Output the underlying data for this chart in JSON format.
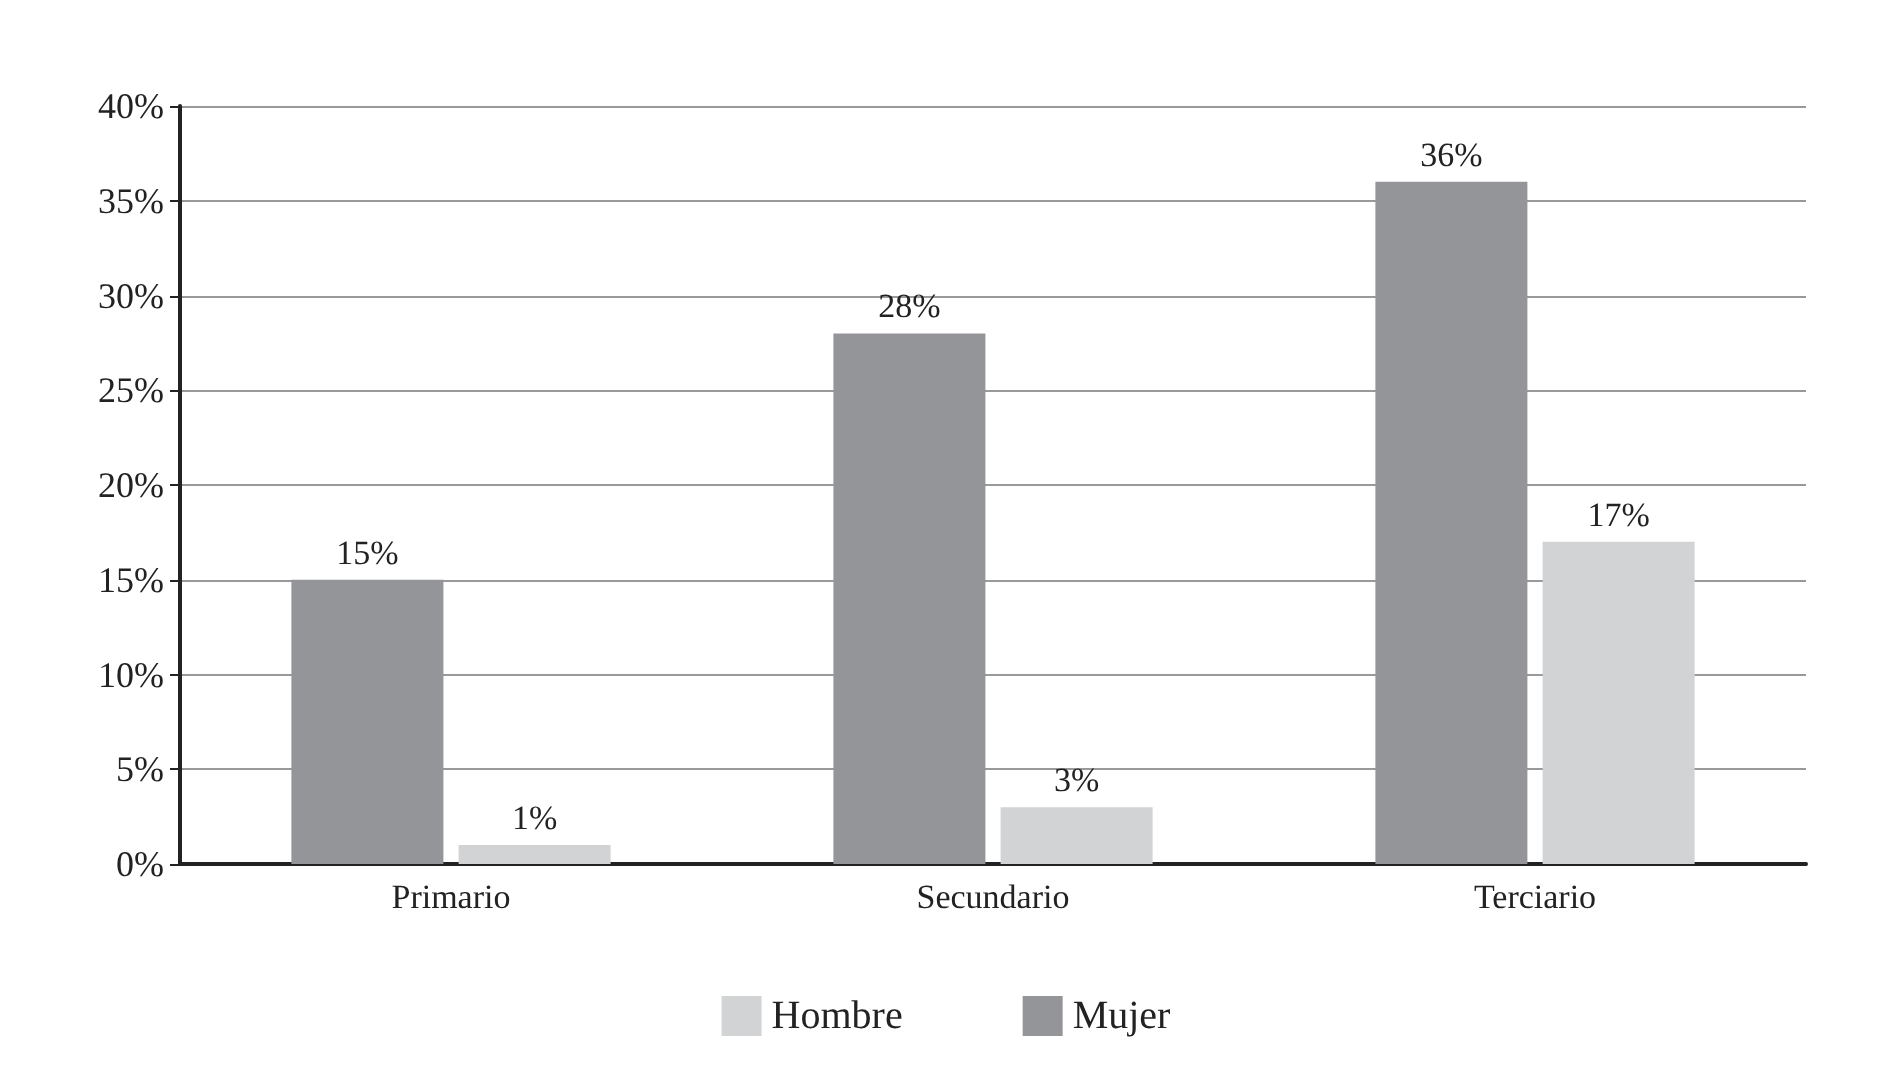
{
  "chart_data": {
    "type": "bar",
    "categories": [
      "Primario",
      "Secundario",
      "Terciario"
    ],
    "series": [
      {
        "name": "Mujer",
        "color": "#939598",
        "values": [
          15,
          28,
          36
        ],
        "value_labels": [
          "15%",
          "28%",
          "36%"
        ]
      },
      {
        "name": "Hombre",
        "color": "#d1d3d4",
        "values": [
          1,
          3,
          17
        ],
        "value_labels": [
          "1%",
          "3%",
          "17%"
        ]
      }
    ],
    "ylim": [
      0,
      40
    ],
    "yticks": [
      {
        "value": 0,
        "label": "0%"
      },
      {
        "value": 5,
        "label": "5%"
      },
      {
        "value": 10,
        "label": "10%"
      },
      {
        "value": 15,
        "label": "15%"
      },
      {
        "value": 20,
        "label": "20%"
      },
      {
        "value": 25,
        "label": "25%"
      },
      {
        "value": 30,
        "label": "30%"
      },
      {
        "value": 35,
        "label": "35%"
      },
      {
        "value": 40,
        "label": "40%"
      }
    ],
    "grid": "y",
    "legend": "bottom"
  }
}
